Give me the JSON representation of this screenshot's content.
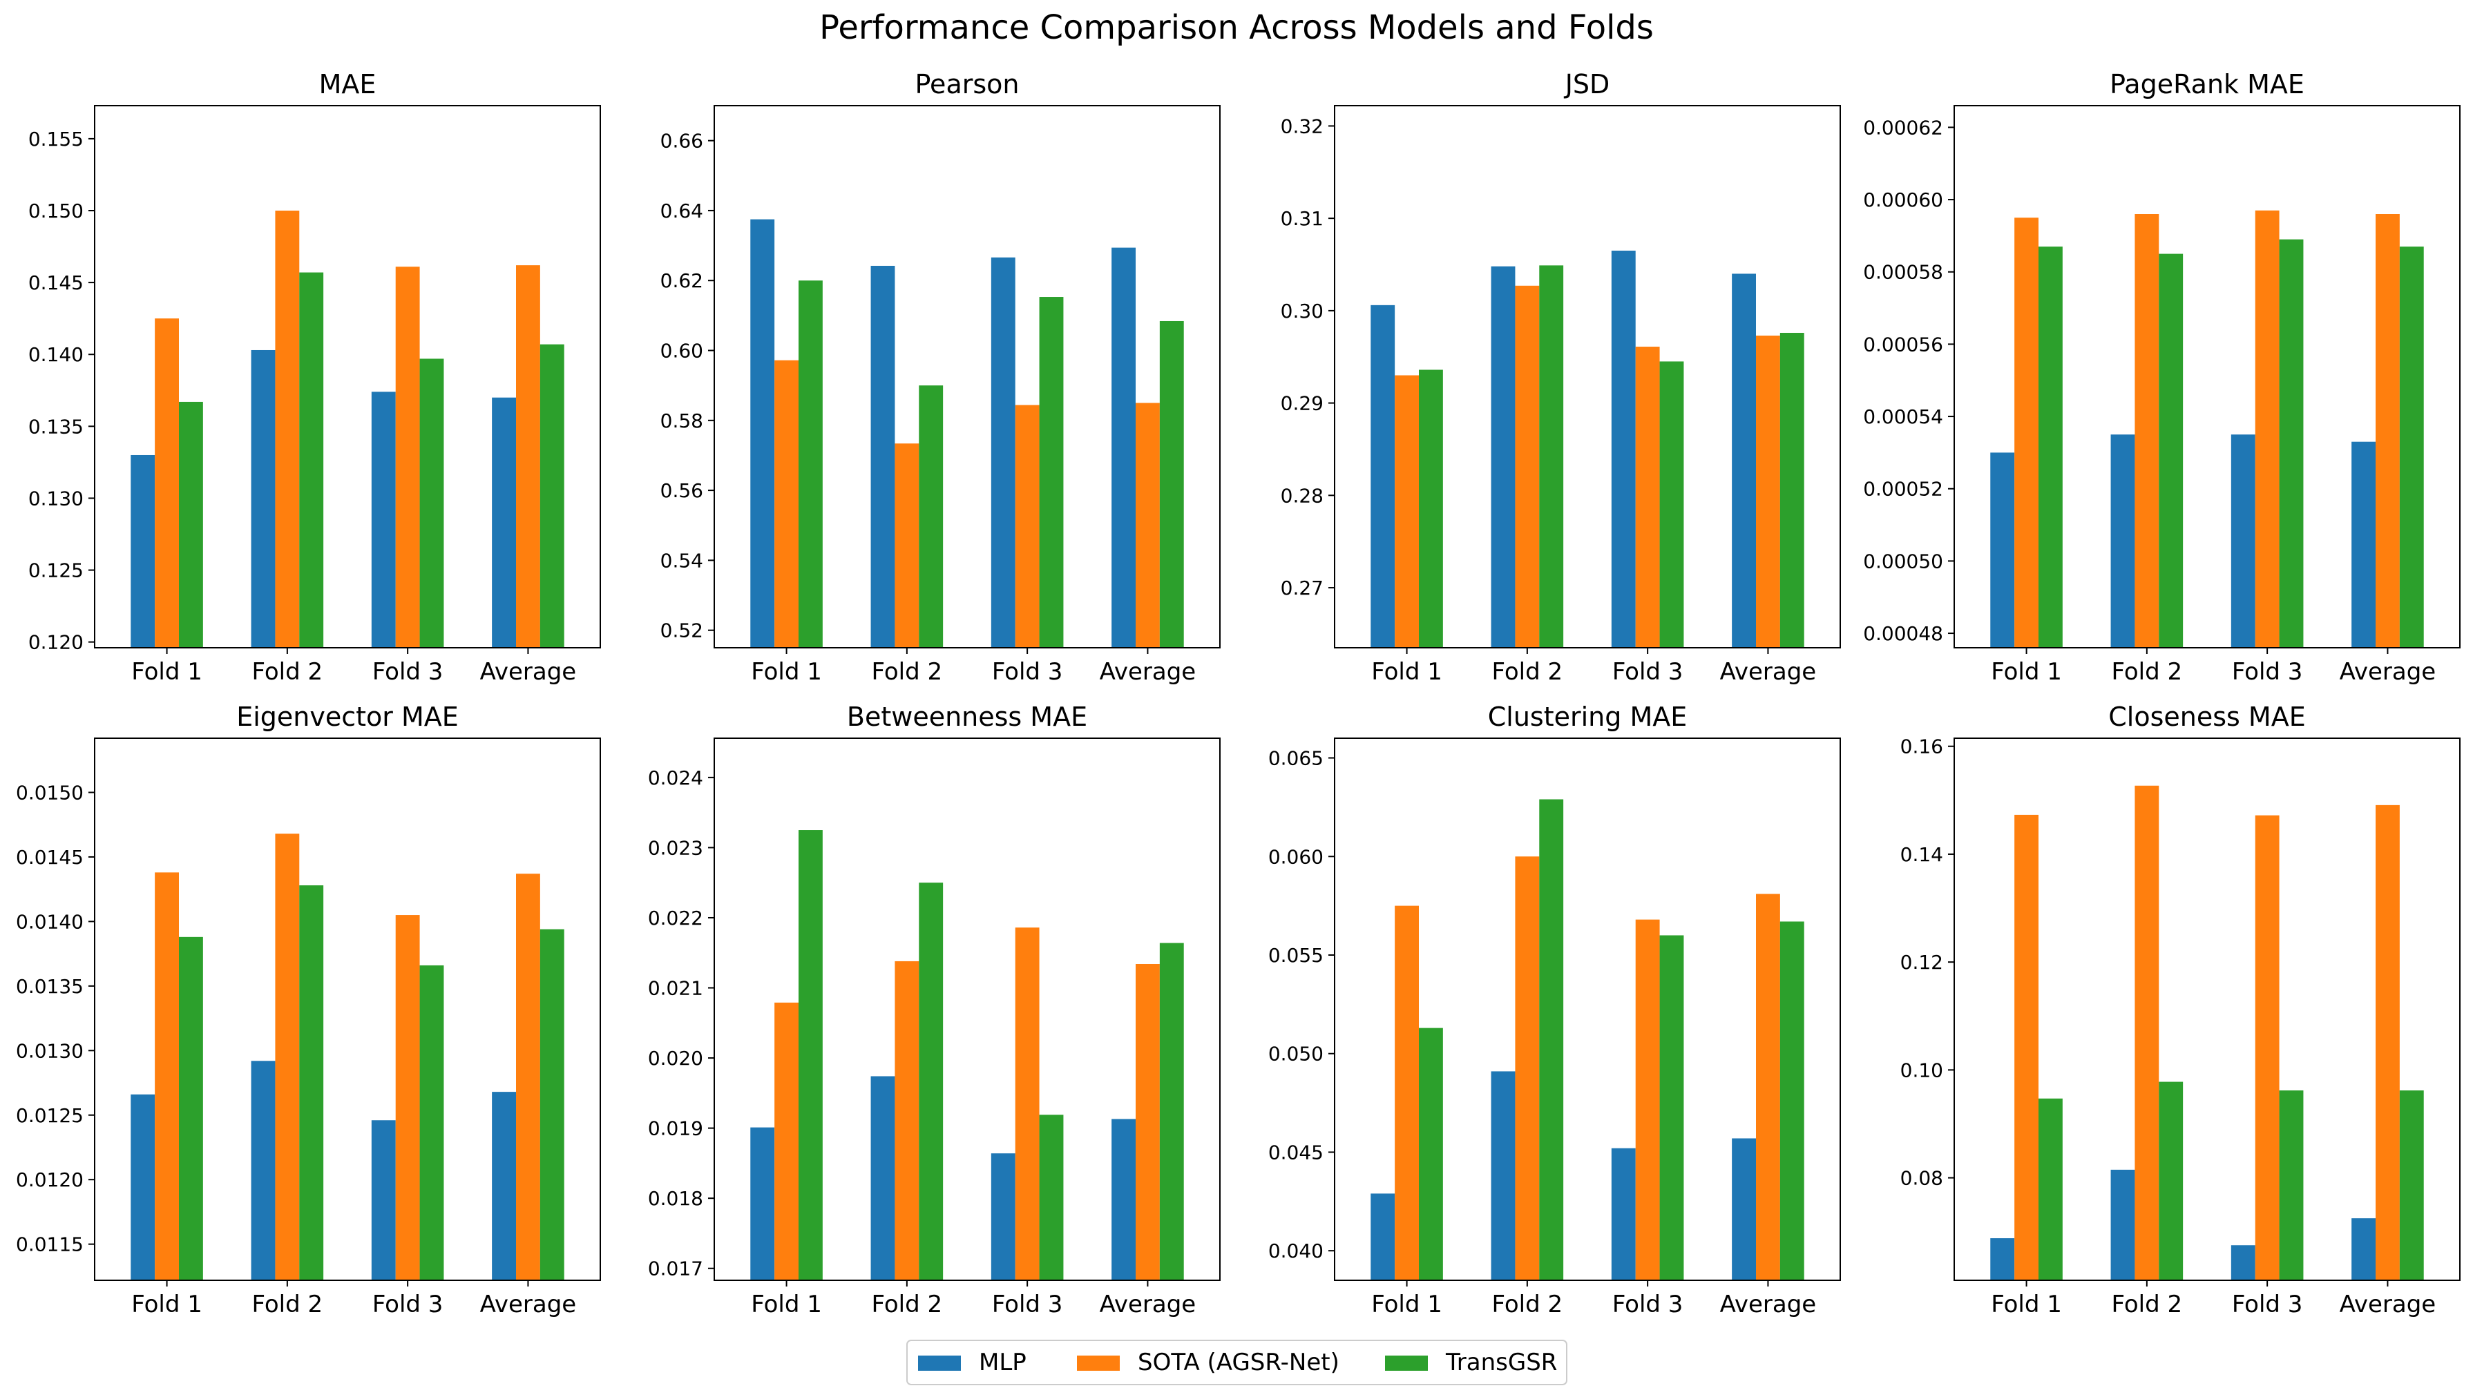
{
  "figure_title": "Performance Comparison Across Models and Folds",
  "legend": {
    "placement": "bottom-center",
    "entries": [
      {
        "name": "MLP",
        "color": "#1f77b4"
      },
      {
        "name": "SOTA (AGSR-Net)",
        "color": "#ff7f0e"
      },
      {
        "name": "TransGSR",
        "color": "#2ca02c"
      }
    ]
  },
  "chart_data": [
    {
      "type": "bar",
      "title": "MAE",
      "categories": [
        "Fold 1",
        "Fold 2",
        "Fold 3",
        "Average"
      ],
      "ylim": [
        0.1196,
        0.1573
      ],
      "yticks": [
        "0.120",
        "0.125",
        "0.130",
        "0.135",
        "0.140",
        "0.145",
        "0.150",
        "0.155"
      ],
      "series": [
        {
          "name": "MLP",
          "values": [
            0.133,
            0.1403,
            0.1374,
            0.137
          ]
        },
        {
          "name": "SOTA (AGSR-Net)",
          "values": [
            0.1425,
            0.15,
            0.1461,
            0.1462
          ]
        },
        {
          "name": "TransGSR",
          "values": [
            0.1367,
            0.1457,
            0.1397,
            0.1407
          ]
        }
      ]
    },
    {
      "type": "bar",
      "title": "Pearson",
      "categories": [
        "Fold 1",
        "Fold 2",
        "Fold 3",
        "Average"
      ],
      "ylim": [
        0.515,
        0.67
      ],
      "yticks": [
        "0.52",
        "0.54",
        "0.56",
        "0.58",
        "0.60",
        "0.62",
        "0.64",
        "0.66"
      ],
      "series": [
        {
          "name": "MLP",
          "values": [
            0.6375,
            0.6242,
            0.6266,
            0.6294
          ]
        },
        {
          "name": "SOTA (AGSR-Net)",
          "values": [
            0.5972,
            0.5734,
            0.5844,
            0.585
          ]
        },
        {
          "name": "TransGSR",
          "values": [
            0.62,
            0.59,
            0.6153,
            0.6084
          ]
        }
      ]
    },
    {
      "type": "bar",
      "title": "JSD",
      "categories": [
        "Fold 1",
        "Fold 2",
        "Fold 3",
        "Average"
      ],
      "ylim": [
        0.2635,
        0.3222
      ],
      "yticks": [
        "0.27",
        "0.28",
        "0.29",
        "0.30",
        "0.31",
        "0.32"
      ],
      "series": [
        {
          "name": "MLP",
          "values": [
            0.3006,
            0.3048,
            0.3065,
            0.304
          ]
        },
        {
          "name": "SOTA (AGSR-Net)",
          "values": [
            0.293,
            0.3027,
            0.2961,
            0.2973
          ]
        },
        {
          "name": "TransGSR",
          "values": [
            0.2936,
            0.3049,
            0.2945,
            0.2976
          ]
        }
      ]
    },
    {
      "type": "bar",
      "title": "PageRank MAE",
      "categories": [
        "Fold 1",
        "Fold 2",
        "Fold 3",
        "Average"
      ],
      "ylim": [
        0.000476,
        0.000626
      ],
      "yticks": [
        "0.00048",
        "0.00050",
        "0.00052",
        "0.00054",
        "0.00056",
        "0.00058",
        "0.00060",
        "0.00062"
      ],
      "series": [
        {
          "name": "MLP",
          "values": [
            0.00053,
            0.000535,
            0.000535,
            0.000533
          ]
        },
        {
          "name": "SOTA (AGSR-Net)",
          "values": [
            0.000595,
            0.000596,
            0.000597,
            0.000596
          ]
        },
        {
          "name": "TransGSR",
          "values": [
            0.000587,
            0.000585,
            0.000589,
            0.000587
          ]
        }
      ]
    },
    {
      "type": "bar",
      "title": "Eigenvector MAE",
      "categories": [
        "Fold 1",
        "Fold 2",
        "Fold 3",
        "Average"
      ],
      "ylim": [
        0.01122,
        0.01542
      ],
      "yticks": [
        "0.0115",
        "0.0120",
        "0.0125",
        "0.0130",
        "0.0135",
        "0.0140",
        "0.0145",
        "0.0150"
      ],
      "series": [
        {
          "name": "MLP",
          "values": [
            0.01266,
            0.01292,
            0.01246,
            0.01268
          ]
        },
        {
          "name": "SOTA (AGSR-Net)",
          "values": [
            0.01438,
            0.01468,
            0.01405,
            0.01437
          ]
        },
        {
          "name": "TransGSR",
          "values": [
            0.01388,
            0.01428,
            0.01366,
            0.01394
          ]
        }
      ]
    },
    {
      "type": "bar",
      "title": "Betweenness MAE",
      "categories": [
        "Fold 1",
        "Fold 2",
        "Fold 3",
        "Average"
      ],
      "ylim": [
        0.01683,
        0.02456
      ],
      "yticks": [
        "0.017",
        "0.018",
        "0.019",
        "0.020",
        "0.021",
        "0.022",
        "0.023",
        "0.024"
      ],
      "series": [
        {
          "name": "MLP",
          "values": [
            0.01901,
            0.01974,
            0.01864,
            0.01913
          ]
        },
        {
          "name": "SOTA (AGSR-Net)",
          "values": [
            0.02079,
            0.02138,
            0.02186,
            0.02134
          ]
        },
        {
          "name": "TransGSR",
          "values": [
            0.02325,
            0.0225,
            0.01919,
            0.02164
          ]
        }
      ]
    },
    {
      "type": "bar",
      "title": "Clustering MAE",
      "categories": [
        "Fold 1",
        "Fold 2",
        "Fold 3",
        "Average"
      ],
      "ylim": [
        0.0385,
        0.066
      ],
      "yticks": [
        "0.040",
        "0.045",
        "0.050",
        "0.055",
        "0.060",
        "0.065"
      ],
      "series": [
        {
          "name": "MLP",
          "values": [
            0.0429,
            0.0491,
            0.0452,
            0.0457
          ]
        },
        {
          "name": "SOTA (AGSR-Net)",
          "values": [
            0.0575,
            0.06,
            0.0568,
            0.0581
          ]
        },
        {
          "name": "TransGSR",
          "values": [
            0.0513,
            0.0629,
            0.056,
            0.0567
          ]
        }
      ]
    },
    {
      "type": "bar",
      "title": "Closeness MAE",
      "categories": [
        "Fold 1",
        "Fold 2",
        "Fold 3",
        "Average"
      ],
      "ylim": [
        0.061,
        0.1615
      ],
      "yticks": [
        "0.08",
        "0.10",
        "0.12",
        "0.14",
        "0.16"
      ],
      "series": [
        {
          "name": "MLP",
          "values": [
            0.0688,
            0.0815,
            0.0675,
            0.0725
          ]
        },
        {
          "name": "SOTA (AGSR-Net)",
          "values": [
            0.1473,
            0.1527,
            0.1472,
            0.1491
          ]
        },
        {
          "name": "TransGSR",
          "values": [
            0.0947,
            0.0978,
            0.0962,
            0.0962
          ]
        }
      ]
    }
  ]
}
